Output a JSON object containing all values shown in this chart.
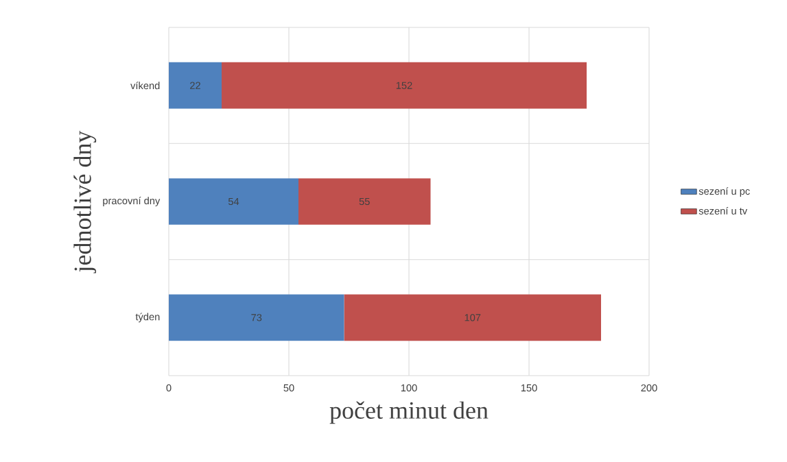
{
  "chart_data": {
    "type": "bar",
    "orientation": "horizontal",
    "stacked": true,
    "categories": [
      "víkend",
      "pracovní dny",
      "týden"
    ],
    "series": [
      {
        "name": "sezení u pc",
        "color": "#4f81bd",
        "values": [
          22,
          54,
          73
        ]
      },
      {
        "name": "sezení u tv",
        "color": "#c0504d",
        "values": [
          152,
          55,
          107
        ]
      }
    ],
    "xlabel": "počet minut den",
    "ylabel": "jednotlivé dny",
    "xlim": [
      0,
      200
    ],
    "xticks": [
      0,
      50,
      100,
      150,
      200
    ],
    "grid": true,
    "legend": "right",
    "data_labels": true
  }
}
